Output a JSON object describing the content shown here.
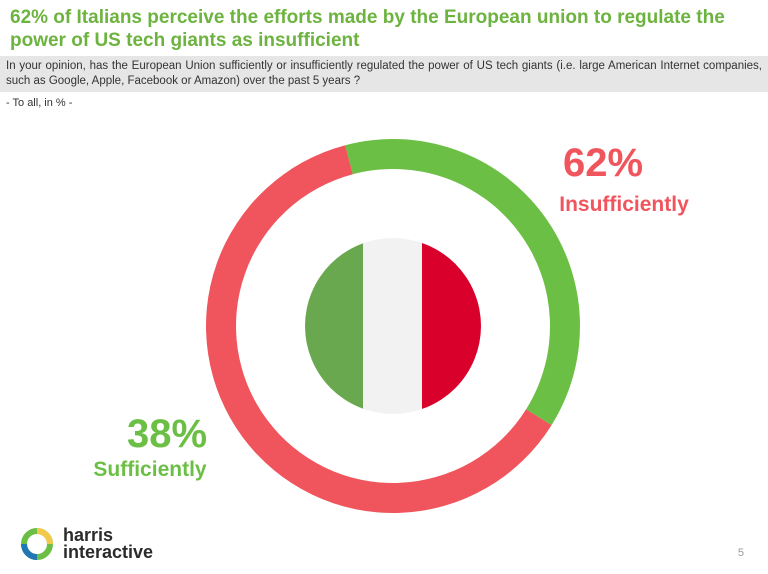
{
  "header": {
    "title": "62% of Italians perceive the efforts made by the European union to regulate the power of US tech giants as insufficient",
    "question": "In your opinion, has the European Union sufficiently or insufficiently regulated the power of US tech giants (i.e. large American Internet companies, such as Google, Apple, Facebook or Amazon) over the past 5 years ?",
    "base": "- To all, in % -"
  },
  "chart_data": {
    "type": "pie",
    "variant": "donut",
    "categories": [
      "Insufficiently",
      "Sufficiently"
    ],
    "values": [
      62,
      38
    ],
    "value_labels": [
      "62%",
      "38%"
    ],
    "colors": [
      "#f0555d",
      "#6cbf45"
    ],
    "title": "",
    "legend": "none"
  },
  "flag": {
    "colors": [
      "#6aa84f",
      "#f2f2f2",
      "#d9002b"
    ],
    "icon": "italy-flag-icon"
  },
  "footer": {
    "logo_icon": "harris-interactive-logo-icon",
    "brand_line1": "harris",
    "brand_line2": "interactive",
    "page_number": "5",
    "logo_colors": [
      "#6cbf45",
      "#f2c94c",
      "#1f77b4"
    ]
  }
}
